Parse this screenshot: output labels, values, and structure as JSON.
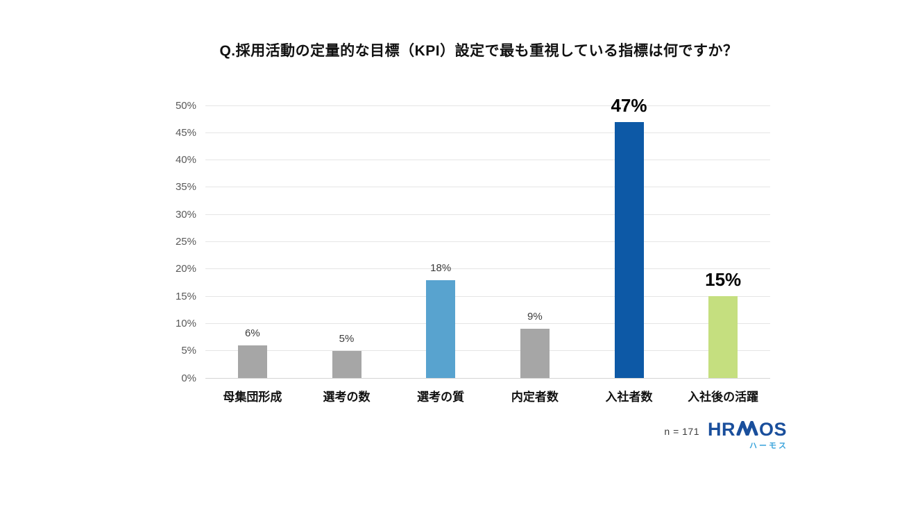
{
  "title": "Q.採用活動の定量的な目標（KPI）設定で最も重視している指標は何ですか？",
  "footnote": "n = 171",
  "logo": {
    "wordmark_left": "HR",
    "wordmark_right": "OS",
    "wordmark_full": "HRMOS",
    "subtext": "ハーモス",
    "wordmark_color": "#1a4f9c",
    "subtext_color": "#38a3db"
  },
  "chart_data": {
    "type": "bar",
    "title": "Q.採用活動の定量的な目標（KPI）設定で最も重視している指標は何ですか？",
    "categories": [
      "母集団形成",
      "選考の数",
      "選考の質",
      "内定者数",
      "入社者数",
      "入社後の活躍"
    ],
    "values": [
      6,
      5,
      18,
      9,
      47,
      15
    ],
    "value_labels": [
      "6%",
      "5%",
      "18%",
      "9%",
      "47%",
      "15%"
    ],
    "emphasized": [
      false,
      false,
      false,
      false,
      true,
      true
    ],
    "bar_colors": [
      "#a6a6a6",
      "#a6a6a6",
      "#58a3cf",
      "#a6a6a6",
      "#0d59a6",
      "#c5df7f"
    ],
    "xlabel": "",
    "ylabel": "",
    "ylim": [
      0,
      50
    ],
    "y_ticks": [
      "0%",
      "5%",
      "10%",
      "15%",
      "20%",
      "25%",
      "30%",
      "35%",
      "40%",
      "45%",
      "50%"
    ],
    "grid": true,
    "legend_position": "none",
    "sample_size": "n = 171"
  }
}
